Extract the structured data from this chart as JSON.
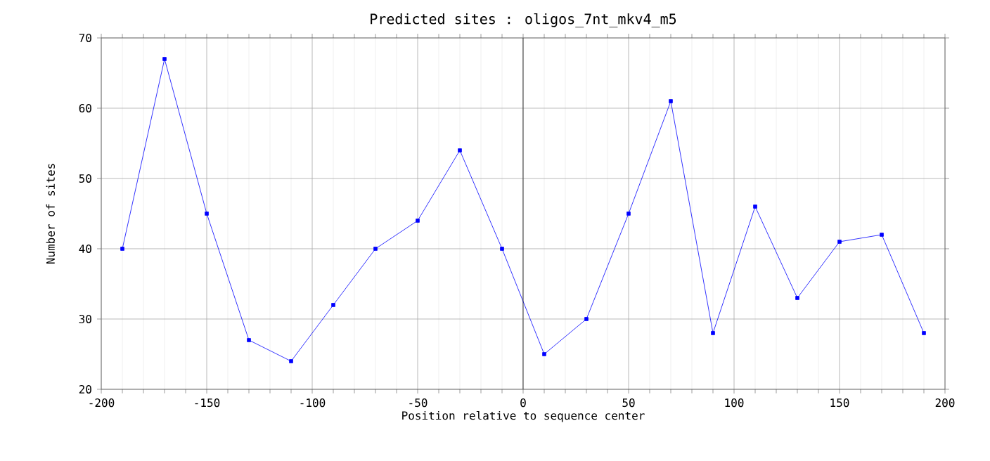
{
  "chart_data": {
    "type": "line",
    "title": "Predicted sites : oligos_7nt_mkv4_m5",
    "xlabel": "Position relative to sequence center",
    "ylabel": "Number of sites",
    "x": [
      -190,
      -170,
      -150,
      -130,
      -110,
      -90,
      -70,
      -50,
      -30,
      -10,
      10,
      30,
      50,
      70,
      90,
      110,
      130,
      150,
      170,
      190
    ],
    "series": [
      {
        "color": "#0000ff",
        "values": [
          40,
          67,
          45,
          27,
          24,
          32,
          40,
          44,
          54,
          40,
          25,
          30,
          45,
          61,
          28,
          46,
          33,
          41,
          42,
          28
        ]
      }
    ],
    "xlim": [
      -200,
      200
    ],
    "ylim": [
      20,
      70
    ],
    "xticks": [
      -200,
      -150,
      -100,
      -50,
      0,
      50,
      100,
      150,
      200
    ],
    "yticks": [
      20,
      30,
      40,
      50,
      60,
      70
    ],
    "grid": true,
    "marker": "square",
    "line_style": "solid",
    "ref_lines": [
      {
        "axis": "x",
        "value": 0,
        "color": "#000000"
      }
    ]
  }
}
